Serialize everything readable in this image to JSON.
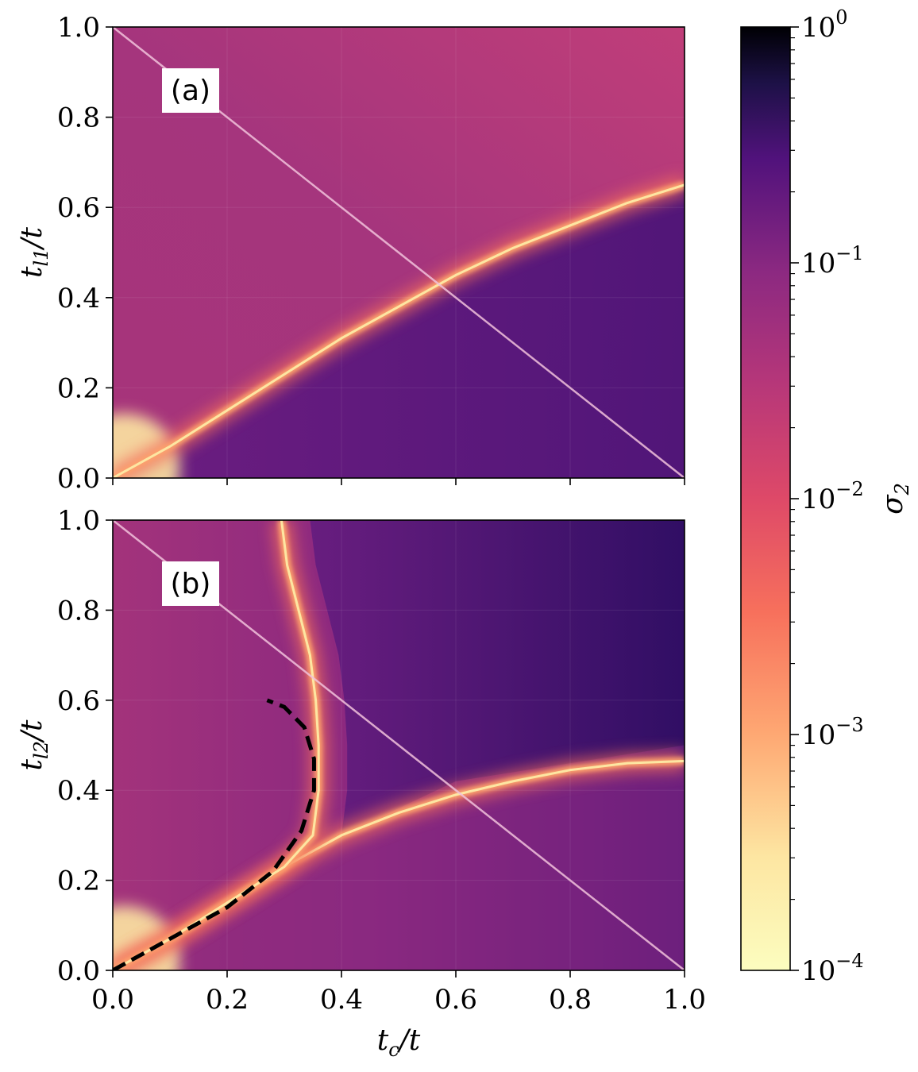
{
  "chart_data": {
    "type": "heatmap",
    "colormap": "magma_r",
    "colorbar": {
      "label": "σ2",
      "scale": "log",
      "range": [
        0.0001,
        1
      ],
      "ticks": [
        {
          "value": 0.0001,
          "base": "10",
          "exp": "−4"
        },
        {
          "value": 0.001,
          "base": "10",
          "exp": "−3"
        },
        {
          "value": 0.01,
          "base": "10",
          "exp": "−2"
        },
        {
          "value": 0.1,
          "base": "10",
          "exp": "−1"
        },
        {
          "value": 1,
          "base": "10",
          "exp": "0"
        }
      ]
    },
    "panels": [
      {
        "id": "a",
        "tag": "(a)",
        "ylabel": "tl1/t",
        "xlim": [
          0,
          1
        ],
        "ylim": [
          0,
          1
        ],
        "yticks": [
          "0.0",
          "0.2",
          "0.4",
          "0.6",
          "0.8",
          "1.0"
        ],
        "diagonal": [
          [
            0,
            1
          ],
          [
            1,
            0
          ]
        ],
        "transition_line": [
          [
            0.0,
            0.0
          ],
          [
            0.1,
            0.07
          ],
          [
            0.2,
            0.15
          ],
          [
            0.3,
            0.23
          ],
          [
            0.4,
            0.31
          ],
          [
            0.5,
            0.38
          ],
          [
            0.6,
            0.45
          ],
          [
            0.7,
            0.51
          ],
          [
            0.8,
            0.56
          ],
          [
            0.9,
            0.61
          ],
          [
            1.0,
            0.65
          ]
        ],
        "dashed_curve": []
      },
      {
        "id": "b",
        "tag": "(b)",
        "ylabel": "tl2/t",
        "xlim": [
          0,
          1
        ],
        "ylim": [
          0,
          1
        ],
        "yticks": [
          "0.0",
          "0.2",
          "0.4",
          "0.6",
          "0.8",
          "1.0"
        ],
        "diagonal": [
          [
            0,
            1
          ],
          [
            1,
            0
          ]
        ],
        "transition_line": [
          [
            0.0,
            0.0
          ],
          [
            0.1,
            0.07
          ],
          [
            0.2,
            0.15
          ],
          [
            0.3,
            0.23
          ],
          [
            0.4,
            0.3
          ],
          [
            0.5,
            0.35
          ],
          [
            0.6,
            0.39
          ],
          [
            0.7,
            0.42
          ],
          [
            0.8,
            0.445
          ],
          [
            0.9,
            0.46
          ],
          [
            1.0,
            0.465
          ]
        ],
        "vertical_line": [
          [
            0.0,
            0.0
          ],
          [
            0.1,
            0.07
          ],
          [
            0.2,
            0.15
          ],
          [
            0.3,
            0.23
          ],
          [
            0.35,
            0.3
          ],
          [
            0.36,
            0.4
          ],
          [
            0.36,
            0.5
          ],
          [
            0.355,
            0.6
          ],
          [
            0.345,
            0.7
          ],
          [
            0.325,
            0.8
          ],
          [
            0.305,
            0.9
          ],
          [
            0.295,
            1.0
          ]
        ],
        "dashed_curve": [
          [
            0.0,
            0.0
          ],
          [
            0.1,
            0.07
          ],
          [
            0.2,
            0.14
          ],
          [
            0.28,
            0.22
          ],
          [
            0.33,
            0.31
          ],
          [
            0.352,
            0.4
          ],
          [
            0.352,
            0.47
          ],
          [
            0.335,
            0.54
          ],
          [
            0.3,
            0.585
          ],
          [
            0.27,
            0.6
          ]
        ]
      }
    ],
    "xlabel": "tc/t",
    "xticks": [
      "0.0",
      "0.2",
      "0.4",
      "0.6",
      "0.8",
      "1.0"
    ]
  }
}
